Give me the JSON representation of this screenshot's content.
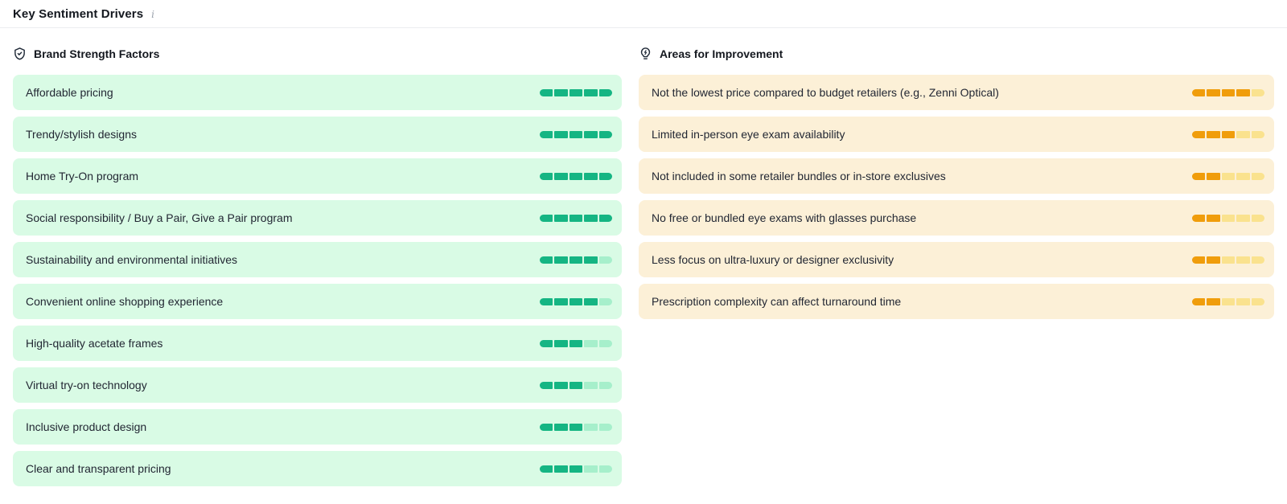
{
  "header": {
    "title": "Key Sentiment Drivers",
    "info_glyph": "i"
  },
  "columns": {
    "strengths": {
      "title": "Brand Strength Factors",
      "icon": "shield-check-icon",
      "max_score": 5,
      "theme": {
        "row_bg": "#d9fbe5",
        "bar_filled": "#15b583",
        "bar_empty": "#a6efcb"
      },
      "items": [
        {
          "label": "Affordable pricing",
          "score": 5
        },
        {
          "label": "Trendy/stylish designs",
          "score": 5
        },
        {
          "label": "Home Try-On program",
          "score": 5
        },
        {
          "label": "Social responsibility / Buy a Pair, Give a Pair program",
          "score": 5
        },
        {
          "label": "Sustainability and environmental initiatives",
          "score": 4
        },
        {
          "label": "Convenient online shopping experience",
          "score": 4
        },
        {
          "label": "High-quality acetate frames",
          "score": 3
        },
        {
          "label": "Virtual try-on technology",
          "score": 3
        },
        {
          "label": "Inclusive product design",
          "score": 3
        },
        {
          "label": "Clear and transparent pricing",
          "score": 3
        }
      ]
    },
    "improvements": {
      "title": "Areas for Improvement",
      "icon": "lightbulb-bolt-icon",
      "max_score": 5,
      "theme": {
        "row_bg": "#fcf0d7",
        "bar_filled": "#f09d0b",
        "bar_empty": "#fae28e"
      },
      "items": [
        {
          "label": "Not the lowest price compared to budget retailers (e.g., Zenni Optical)",
          "score": 4
        },
        {
          "label": "Limited in-person eye exam availability",
          "score": 3
        },
        {
          "label": "Not included in some retailer bundles or in-store exclusives",
          "score": 2
        },
        {
          "label": "No free or bundled eye exams with glasses purchase",
          "score": 2
        },
        {
          "label": "Less focus on ultra-luxury or designer exclusivity",
          "score": 2
        },
        {
          "label": "Prescription complexity can affect turnaround time",
          "score": 2
        }
      ]
    }
  }
}
